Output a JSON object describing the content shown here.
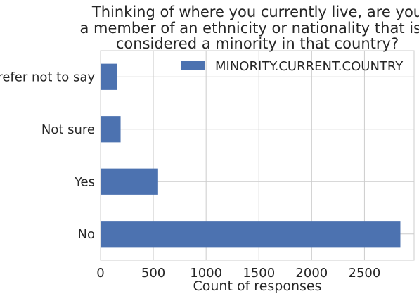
{
  "chart_data": {
    "type": "bar",
    "orientation": "horizontal",
    "title_lines": [
      "Thinking of where you currently live, are you",
      "a member of an ethnicity or nationality that is a",
      "considered a minority in that country?"
    ],
    "xlabel": "Count of responses",
    "ylabel": "",
    "categories": [
      "No",
      "Yes",
      "Not sure",
      "Prefer not to say"
    ],
    "series": [
      {
        "name": "MINORITY.CURRENT.COUNTRY",
        "values": [
          2840,
          545,
          190,
          155
        ],
        "color": "#4c72b0"
      }
    ],
    "xlim": [
      0,
      2970
    ],
    "xticks": [
      0,
      500,
      1000,
      1500,
      2000,
      2500
    ],
    "grid": true,
    "legend_position": "top-right"
  }
}
